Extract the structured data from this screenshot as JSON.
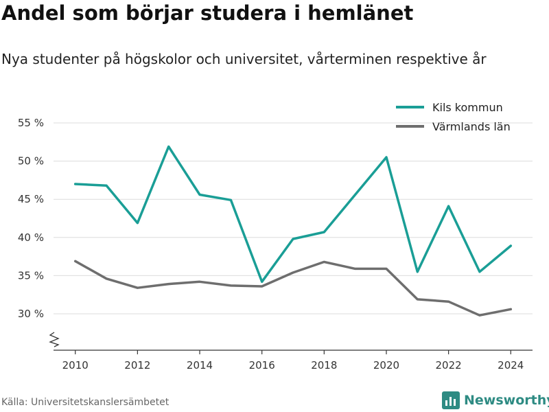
{
  "title": "Andel som börjar studera i hemlänet",
  "subtitle": "Nya studenter på högskolor och universitet, vårterminen respektive år",
  "source": "Källa: Universitetskanslersämbetet",
  "brand": "Newsworthy",
  "chart_data": {
    "type": "line",
    "x": [
      2010,
      2011,
      2012,
      2013,
      2014,
      2015,
      2016,
      2017,
      2018,
      2019,
      2020,
      2021,
      2022,
      2023,
      2024
    ],
    "series": [
      {
        "name": "Kils kommun",
        "color": "#1a9e96",
        "values": [
          47.0,
          46.8,
          41.9,
          51.9,
          45.6,
          44.9,
          34.2,
          39.8,
          40.7,
          45.6,
          50.5,
          35.5,
          44.1,
          35.5,
          38.9
        ]
      },
      {
        "name": "Värmlands län",
        "color": "#6e6e6e",
        "values": [
          36.9,
          34.6,
          33.4,
          33.9,
          34.2,
          33.7,
          33.6,
          35.4,
          36.8,
          35.9,
          35.9,
          31.9,
          31.6,
          29.8,
          30.6
        ]
      }
    ],
    "xticks": [
      2010,
      2012,
      2014,
      2016,
      2018,
      2020,
      2022,
      2024
    ],
    "xtick_labels": [
      "2010",
      "2012",
      "2014",
      "2016",
      "2018",
      "2020",
      "2022",
      "2024"
    ],
    "yticks": [
      30,
      35,
      40,
      45,
      50,
      55
    ],
    "ytick_labels": [
      "30 %",
      "35 %",
      "40 %",
      "45 %",
      "50 %",
      "55 %"
    ],
    "ylim": [
      25.5,
      55
    ],
    "xlim": [
      2009.3,
      2024.7
    ],
    "axis_break": true,
    "grid": true,
    "legend_position": "top-right"
  }
}
